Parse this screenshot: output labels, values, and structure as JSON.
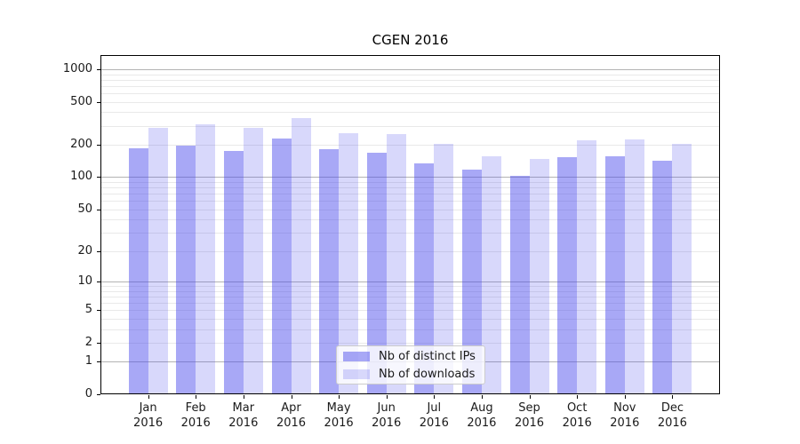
{
  "title": "CGEN 2016",
  "legend": {
    "items": [
      {
        "label": "Nb of distinct IPs"
      },
      {
        "label": "Nb of downloads"
      }
    ]
  },
  "chart_data": {
    "type": "bar",
    "title": "CGEN 2016",
    "categories": [
      "Jan 2016",
      "Feb 2016",
      "Mar 2016",
      "Apr 2016",
      "May 2016",
      "Jun 2016",
      "Jul 2016",
      "Aug 2016",
      "Sep 2016",
      "Oct 2016",
      "Nov 2016",
      "Dec 2016"
    ],
    "series": [
      {
        "name": "Nb of distinct IPs",
        "color": "rgba(70,70,235,0.47)",
        "values": [
          185,
          196,
          175,
          230,
          181,
          168,
          134,
          117,
          103,
          154,
          156,
          141
        ]
      },
      {
        "name": "Nb of downloads",
        "color": "rgba(70,70,235,0.21)",
        "values": [
          285,
          312,
          285,
          352,
          255,
          253,
          203,
          155,
          148,
          220,
          224,
          202
        ]
      }
    ],
    "xlabel": "",
    "ylabel": "",
    "yscale": "log1p",
    "yticks": [
      0,
      1,
      2,
      5,
      10,
      20,
      50,
      100,
      200,
      500,
      1000
    ],
    "ylim": [
      0,
      1350
    ],
    "grid": {
      "major_ticks": [
        1,
        10,
        100,
        1000
      ],
      "minor_color": "#e9e9e9",
      "major_color": "#b3b3b3",
      "visible": true
    },
    "legend_position": "lower center"
  }
}
